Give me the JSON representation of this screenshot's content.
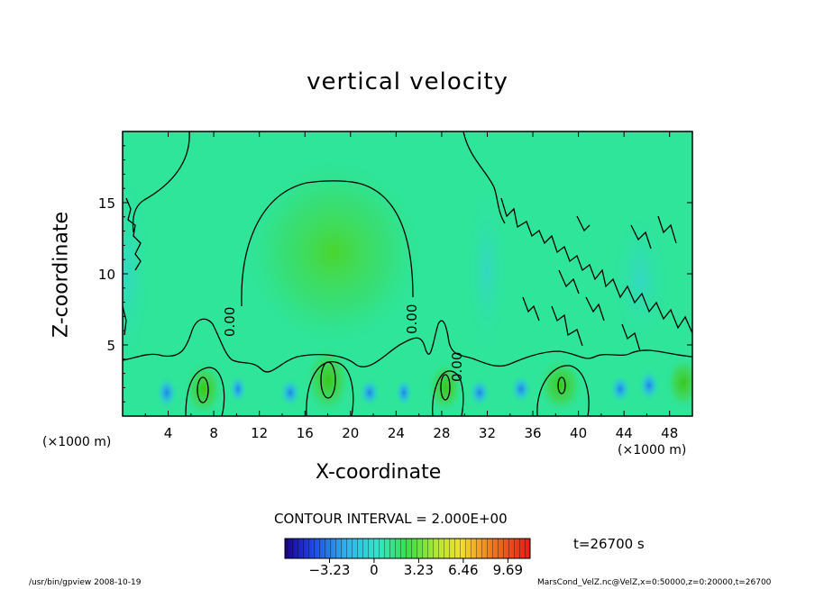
{
  "chart_data": {
    "type": "heatmap",
    "title": "vertical velocity",
    "xlabel": "X-coordinate",
    "ylabel": "Z-coordinate",
    "x_unit": "(×1000 m)",
    "xlim": [
      0,
      50
    ],
    "ylim": [
      0,
      20
    ],
    "x_ticks": [
      "4",
      "8",
      "12",
      "16",
      "20",
      "24",
      "28",
      "32",
      "36",
      "40",
      "44",
      "48"
    ],
    "y_ticks": [
      "5",
      "10",
      "15"
    ],
    "contour_label": "0.00",
    "contour_interval_label": "CONTOUR INTERVAL = 2.000E+00",
    "colorbar": {
      "tick_labels": [
        "−3.23",
        "0",
        "3.23",
        "6.46",
        "9.69"
      ],
      "tick_values": [
        -3.23,
        0,
        3.23,
        6.46,
        9.69
      ],
      "range": [
        -6.46,
        11.3
      ]
    },
    "time_label": "t=26700 s",
    "colors": {
      "background_field": "#2ee59a",
      "updraft": "#3fd43a",
      "downdraft": "#2bb4ee"
    }
  },
  "footer": {
    "left": "/usr/bin/gpview   2008-10-19",
    "right": "MarsCond_VelZ.nc@VelZ,x=0:50000,z=0:20000,t=26700"
  }
}
